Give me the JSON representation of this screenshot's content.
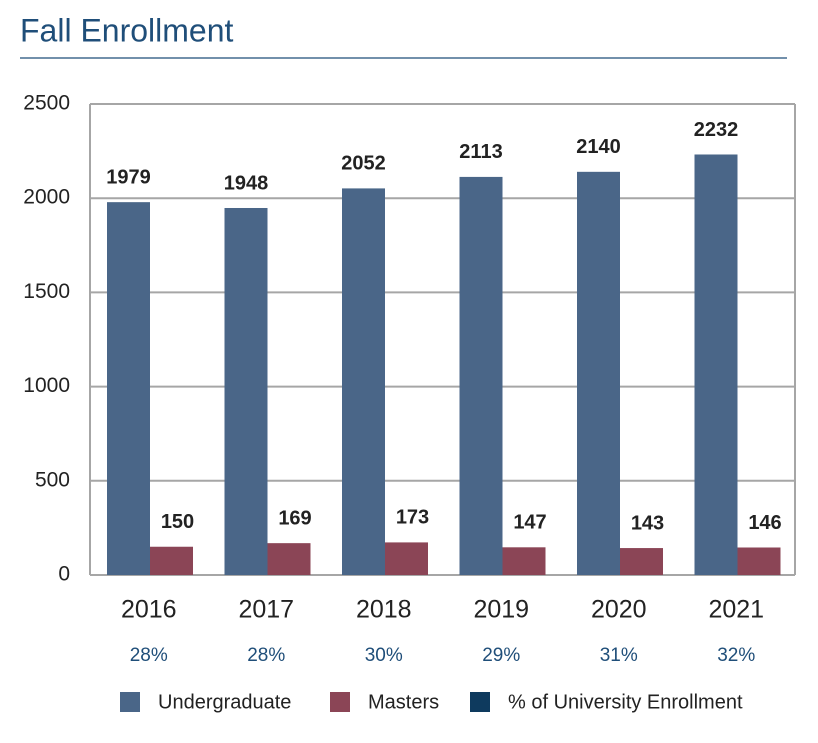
{
  "chart_data": {
    "type": "bar",
    "title": "Fall Enrollment",
    "categories": [
      "2016",
      "2017",
      "2018",
      "2019",
      "2020",
      "2021"
    ],
    "series": [
      {
        "name": "Undergraduate",
        "color": "#4a6688",
        "values": [
          1979,
          1948,
          2052,
          2113,
          2140,
          2232
        ]
      },
      {
        "name": "Masters",
        "color": "#8b4556",
        "values": [
          150,
          169,
          173,
          147,
          143,
          146
        ]
      },
      {
        "name": "% of University Enrollment",
        "color": "#0e3a5e",
        "values": [
          28,
          28,
          30,
          29,
          31,
          32
        ],
        "value_labels": [
          "28%",
          "28%",
          "30%",
          "29%",
          "31%",
          "32%"
        ]
      }
    ],
    "ylim": [
      0,
      2500
    ],
    "yticks": [
      0,
      500,
      1000,
      1500,
      2000,
      2500
    ],
    "grid": true
  }
}
